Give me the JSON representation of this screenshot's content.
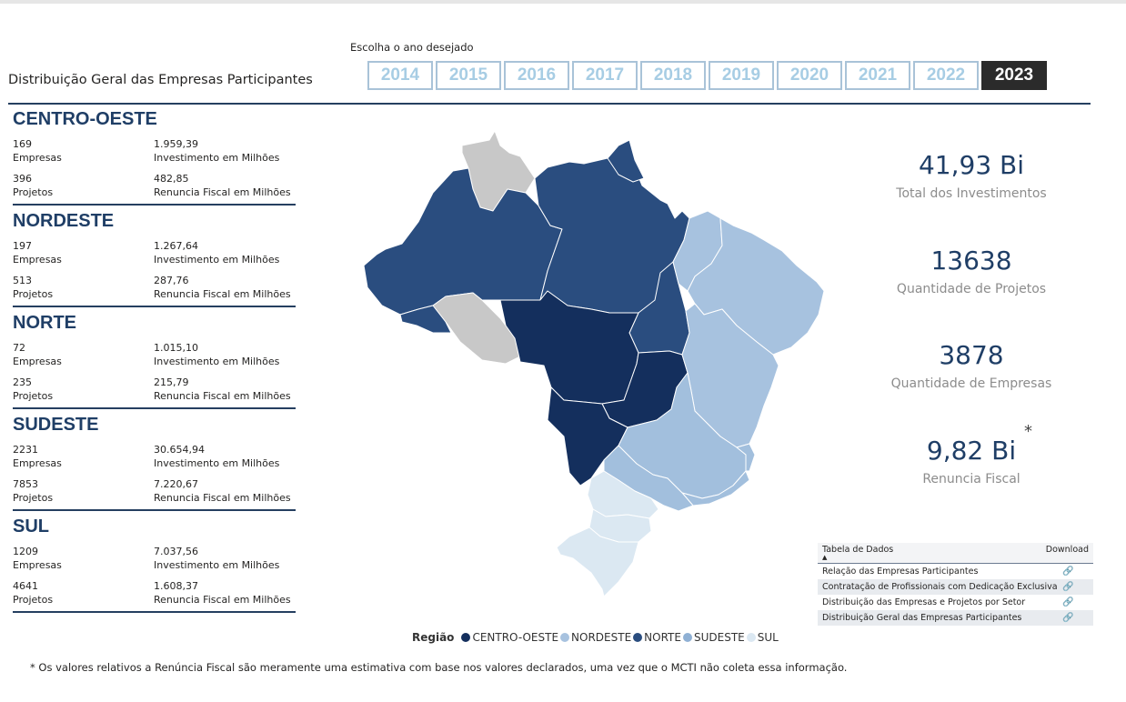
{
  "header": {
    "title": "Distribuição Geral das Empresas Participantes",
    "year_prompt": "Escolha o ano desejado",
    "years": [
      "2014",
      "2015",
      "2016",
      "2017",
      "2018",
      "2019",
      "2020",
      "2021",
      "2022",
      "2023"
    ],
    "selected_year": "2023"
  },
  "regions": [
    {
      "name": "CENTRO-OESTE",
      "empresas": "169",
      "empresas_label": "Empresas",
      "investimento": "1.959,39",
      "investimento_label": "Investimento em Milhões",
      "projetos": "396",
      "projetos_label": "Projetos",
      "renuncia": "482,85",
      "renuncia_label": "Renuncia Fiscal em Milhões"
    },
    {
      "name": "NORDESTE",
      "empresas": "197",
      "empresas_label": "Empresas",
      "investimento": "1.267,64",
      "investimento_label": "Investimento em Milhões",
      "projetos": "513",
      "projetos_label": "Projetos",
      "renuncia": "287,76",
      "renuncia_label": "Renuncia Fiscal em Milhões"
    },
    {
      "name": "NORTE",
      "empresas": "72",
      "empresas_label": "Empresas",
      "investimento": "1.015,10",
      "investimento_label": "Investimento em Milhões",
      "projetos": "235",
      "projetos_label": "Projetos",
      "renuncia": "215,79",
      "renuncia_label": "Renuncia Fiscal em Milhões"
    },
    {
      "name": "SUDESTE",
      "empresas": "2231",
      "empresas_label": "Empresas",
      "investimento": "30.654,94",
      "investimento_label": "Investimento em Milhões",
      "projetos": "7853",
      "projetos_label": "Projetos",
      "renuncia": "7.220,67",
      "renuncia_label": "Renuncia Fiscal em Milhões"
    },
    {
      "name": "SUL",
      "empresas": "1209",
      "empresas_label": "Empresas",
      "investimento": "7.037,56",
      "investimento_label": "Investimento em Milhões",
      "projetos": "4641",
      "projetos_label": "Projetos",
      "renuncia": "1.608,37",
      "renuncia_label": "Renuncia Fiscal em Milhões"
    }
  ],
  "kpis": [
    {
      "value": "41,93 Bi",
      "label": "Total dos Investimentos"
    },
    {
      "value": "13638",
      "label": "Quantidade de Projetos"
    },
    {
      "value": "3878",
      "label": "Quantidade de Empresas"
    },
    {
      "value": "9,82 Bi",
      "label": "Renuncia Fiscal"
    }
  ],
  "kpi_asterisk": "*",
  "legend": {
    "title": "Região",
    "items": [
      {
        "label": "CENTRO-OESTE",
        "color": "#142f5d"
      },
      {
        "label": "NORDESTE",
        "color": "#a7c2df"
      },
      {
        "label": "NORTE",
        "color": "#2a4d7f"
      },
      {
        "label": "SUDESTE",
        "color": "#8fb0d4"
      },
      {
        "label": "SUL",
        "color": "#dbe8f2"
      }
    ]
  },
  "map_colors": {
    "centro_oeste": "#142f5d",
    "norte": "#2a4d7f",
    "nordeste": "#a7c2df",
    "sudeste": "#a2bfdd",
    "sul": "#dbe8f2",
    "no_data": "#c8c8c8"
  },
  "table": {
    "col_name": "Tabela de Dados",
    "col_download": "Download",
    "sort_indicator": "▲",
    "link_icon": "🔗",
    "rows": [
      "Relação das Empresas Participantes",
      "Contratação de Profissionais com Dedicação Exclusiva",
      "Distribuição das Empresas e Projetos por Setor",
      "Distribuição Geral das Empresas Participantes"
    ]
  },
  "footnote": "* Os valores relativos a Renúncia Fiscal são meramente uma estimativa com base nos valores declarados, uma vez que o MCTI não coleta essa informação."
}
